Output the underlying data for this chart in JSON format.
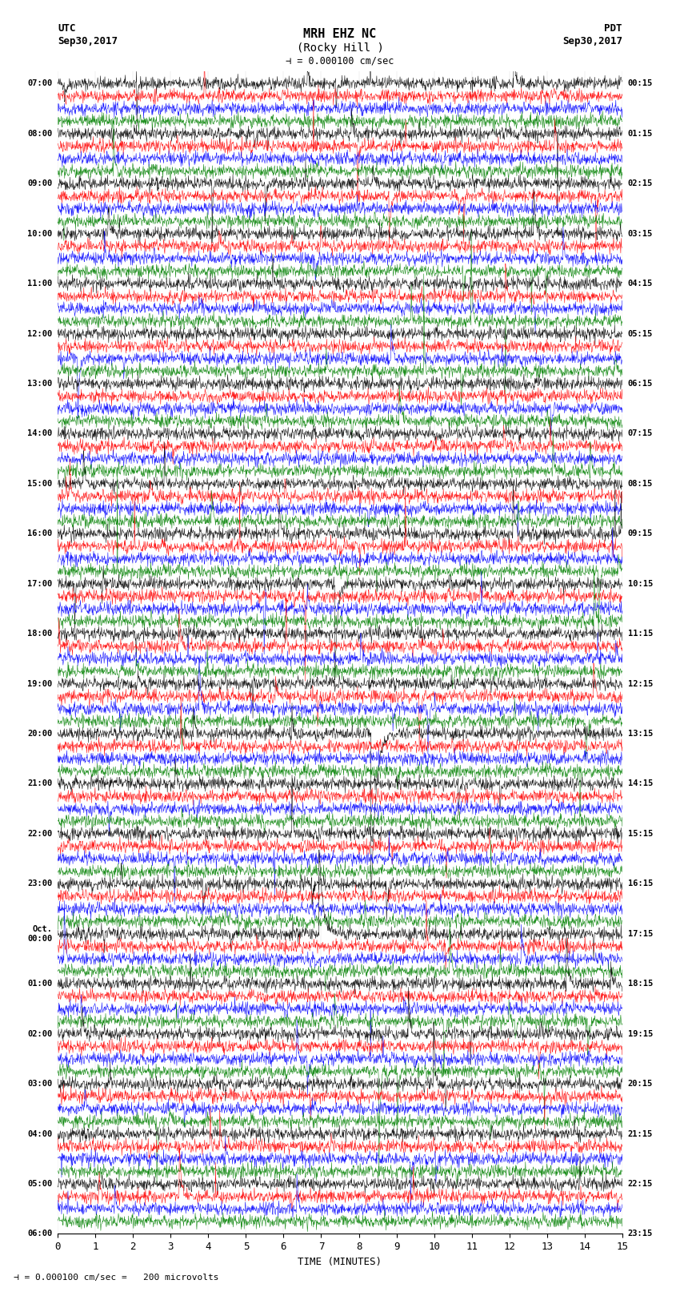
{
  "title_line1": "MRH EHZ NC",
  "title_line2": "(Rocky Hill )",
  "scale_label": "= 0.000100 cm/sec",
  "utc_label": "UTC",
  "utc_date": "Sep30,2017",
  "pdt_label": "PDT",
  "pdt_date": "Sep30,2017",
  "bottom_label": "= 0.000100 cm/sec =   200 microvolts",
  "xlabel": "TIME (MINUTES)",
  "xmin": 0,
  "xmax": 15,
  "xticks": [
    0,
    1,
    2,
    3,
    4,
    5,
    6,
    7,
    8,
    9,
    10,
    11,
    12,
    13,
    14,
    15
  ],
  "left_times": [
    "07:00",
    "",
    "",
    "",
    "08:00",
    "",
    "",
    "",
    "09:00",
    "",
    "",
    "",
    "10:00",
    "",
    "",
    "",
    "11:00",
    "",
    "",
    "",
    "12:00",
    "",
    "",
    "",
    "13:00",
    "",
    "",
    "",
    "14:00",
    "",
    "",
    "",
    "15:00",
    "",
    "",
    "",
    "16:00",
    "",
    "",
    "",
    "17:00",
    "",
    "",
    "",
    "18:00",
    "",
    "",
    "",
    "19:00",
    "",
    "",
    "",
    "20:00",
    "",
    "",
    "",
    "21:00",
    "",
    "",
    "",
    "22:00",
    "",
    "",
    "",
    "23:00",
    "",
    "",
    "",
    "Oct.\n00:00",
    "",
    "",
    "",
    "01:00",
    "",
    "",
    "",
    "02:00",
    "",
    "",
    "",
    "03:00",
    "",
    "",
    "",
    "04:00",
    "",
    "",
    "",
    "05:00",
    "",
    "",
    "",
    "06:00",
    "",
    "",
    ""
  ],
  "right_times": [
    "00:15",
    "",
    "",
    "",
    "01:15",
    "",
    "",
    "",
    "02:15",
    "",
    "",
    "",
    "03:15",
    "",
    "",
    "",
    "04:15",
    "",
    "",
    "",
    "05:15",
    "",
    "",
    "",
    "06:15",
    "",
    "",
    "",
    "07:15",
    "",
    "",
    "",
    "08:15",
    "",
    "",
    "",
    "09:15",
    "",
    "",
    "",
    "10:15",
    "",
    "",
    "",
    "11:15",
    "",
    "",
    "",
    "12:15",
    "",
    "",
    "",
    "13:15",
    "",
    "",
    "",
    "14:15",
    "",
    "",
    "",
    "15:15",
    "",
    "",
    "",
    "16:15",
    "",
    "",
    "",
    "17:15",
    "",
    "",
    "",
    "18:15",
    "",
    "",
    "",
    "19:15",
    "",
    "",
    "",
    "20:15",
    "",
    "",
    "",
    "21:15",
    "",
    "",
    "",
    "22:15",
    "",
    "",
    "",
    "23:15",
    "",
    "",
    ""
  ],
  "trace_colors": [
    "black",
    "red",
    "blue",
    "green"
  ],
  "bg_color": "white",
  "num_rows": 92,
  "noise_scale": 0.25,
  "spike_scale": 2.5,
  "figsize": [
    8.5,
    16.13
  ],
  "dpi": 100
}
